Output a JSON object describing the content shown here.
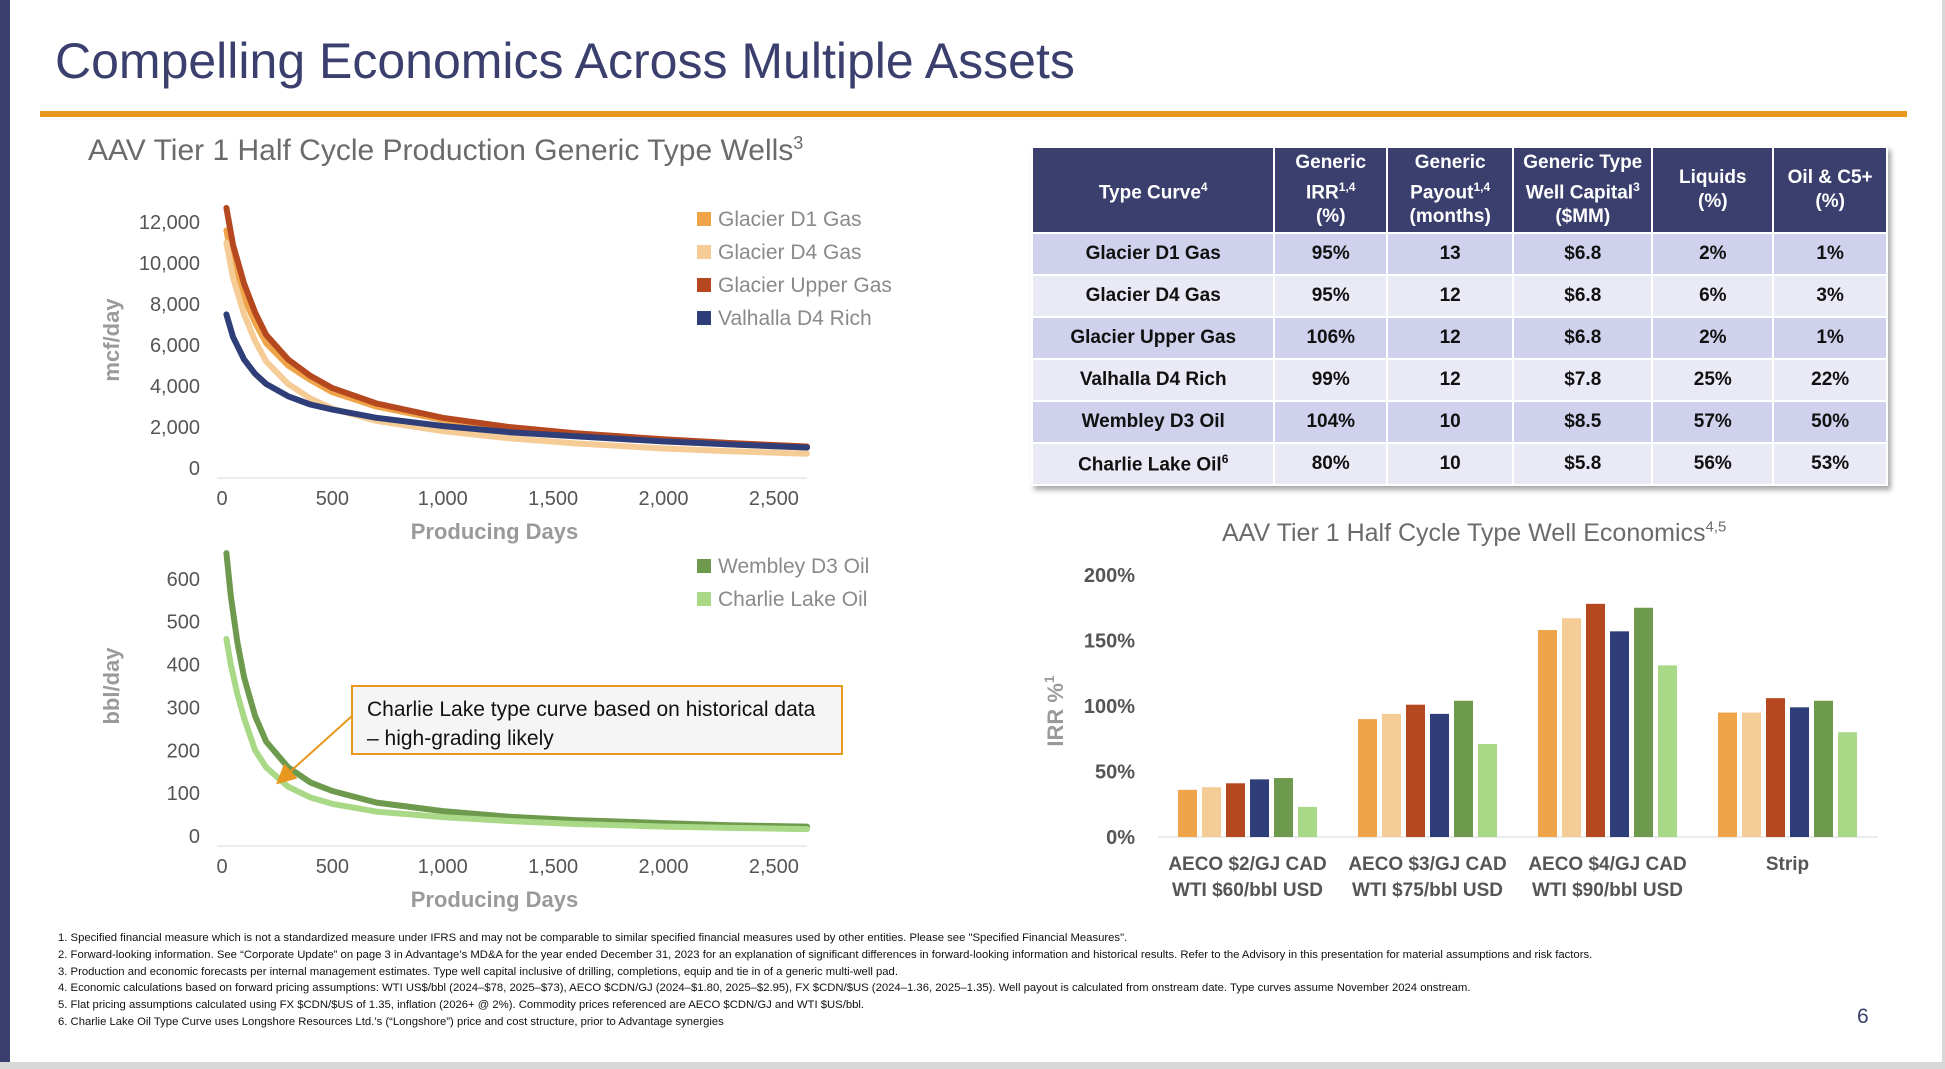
{
  "title": "Compelling Economics Across Multiple Assets",
  "page_number": "6",
  "colors": {
    "accent_orange": "#e8971f",
    "navy": "#3b3f6e",
    "glacier_d1": "#f0a44a",
    "glacier_d4": "#f5cb96",
    "glacier_upper": "#b5481f",
    "valhalla_d4": "#2f3e78",
    "wembley_d3": "#6e9a4e",
    "charlie_lake": "#a9d986"
  },
  "gas_chart": {
    "title": "AAV Tier 1 Half Cycle Production Generic Type Wells",
    "title_sup": "3"
  },
  "callout": "Charlie Lake type curve based on historical data – high-grading likely",
  "econ_chart": {
    "title": "AAV Tier 1 Half Cycle Type Well Economics",
    "title_sup": "4,5",
    "ylabel": "IRR %",
    "ylabel_sup": "1"
  },
  "table": {
    "headers": [
      {
        "text": "Type Curve",
        "sup": "4"
      },
      {
        "lines": [
          "Generic",
          "IRR",
          "(%)"
        ],
        "sup": "1,4"
      },
      {
        "lines": [
          "Generic",
          "Payout",
          "(months)"
        ],
        "sup": "1,4"
      },
      {
        "lines": [
          "Generic Type",
          "Well Capital",
          "($MM)"
        ],
        "sup": "3"
      },
      {
        "lines": [
          "Liquids",
          "(%)"
        ]
      },
      {
        "lines": [
          "Oil & C5+",
          "(%)"
        ]
      }
    ],
    "rows": [
      {
        "name": "Glacier D1 Gas",
        "irr": "95%",
        "payout": "13",
        "capital": "$6.8",
        "liquids": "2%",
        "oil": "1%"
      },
      {
        "name": "Glacier D4 Gas",
        "irr": "95%",
        "payout": "12",
        "capital": "$6.8",
        "liquids": "6%",
        "oil": "3%"
      },
      {
        "name": "Glacier Upper Gas",
        "irr": "106%",
        "payout": "12",
        "capital": "$6.8",
        "liquids": "2%",
        "oil": "1%"
      },
      {
        "name": "Valhalla D4 Rich",
        "irr": "99%",
        "payout": "12",
        "capital": "$7.8",
        "liquids": "25%",
        "oil": "22%"
      },
      {
        "name": "Wembley D3 Oil",
        "irr": "104%",
        "payout": "10",
        "capital": "$8.5",
        "liquids": "57%",
        "oil": "50%"
      },
      {
        "name": "Charlie Lake Oil",
        "name_sup": "6",
        "irr": "80%",
        "payout": "10",
        "capital": "$5.8",
        "liquids": "56%",
        "oil": "53%"
      }
    ]
  },
  "footnotes": [
    "1. Specified financial measure which is not a standardized measure under IFRS and may not be comparable to similar specified financial measures used by other entities. Please see \"Specified Financial Measures\".",
    "2. Forward-looking information. See “Corporate Update” on page 3 in Advantage’s MD&A for the year ended December 31, 2023 for an explanation of significant differences in forward-looking information and historical results. Refer to the Advisory in this presentation for material assumptions and risk factors.",
    "3. Production and economic forecasts per internal management estimates. Type well capital inclusive of drilling, completions, equip and tie in of a generic multi-well pad.",
    "4. Economic calculations based on forward pricing assumptions: WTI US$/bbl (2024–$78, 2025–$73), AECO $CDN/GJ (2024–$1.80, 2025–$2.95), FX $CDN/$US (2024–1.36, 2025–1.35). Well payout is calculated from onstream date. Type curves assume November 2024 onstream.",
    "5. Flat pricing assumptions calculated using FX $CDN/$US of 1.35, inflation (2026+ @ 2%). Commodity prices referenced are AECO $CDN/GJ and WTI $US/bbl.",
    "6. Charlie Lake Oil Type Curve uses Longshore Resources Ltd.’s (“Longshore”) price and cost structure, prior to Advantage synergies"
  ],
  "chart_data": [
    {
      "type": "line",
      "xlabel": "Producing Days",
      "ylabel": "mcf/day",
      "xlim": [
        0,
        2650
      ],
      "ylim": [
        0,
        12500
      ],
      "xticks": [
        0,
        500,
        1000,
        1500,
        2000,
        2500
      ],
      "yticks": [
        0,
        2000,
        4000,
        6000,
        8000,
        10000,
        12000
      ],
      "xtick_labels": [
        "0",
        "500",
        "1,000",
        "1,500",
        "2,000",
        "2,500"
      ],
      "ytick_labels": [
        "0",
        "2,000",
        "4,000",
        "6,000",
        "8,000",
        "10,000",
        "12,000"
      ],
      "legend_position": "top-right",
      "series": [
        {
          "name": "Glacier D1 Gas",
          "color": "#f0a44a",
          "x": [
            20,
            50,
            100,
            150,
            200,
            300,
            400,
            500,
            700,
            1000,
            1300,
            1600,
            2000,
            2300,
            2650
          ],
          "y": [
            11600,
            10000,
            8300,
            7100,
            6100,
            5000,
            4300,
            3700,
            3000,
            2350,
            1900,
            1600,
            1300,
            1150,
            1000
          ]
        },
        {
          "name": "Glacier D4 Gas",
          "color": "#f5cb96",
          "x": [
            20,
            50,
            100,
            150,
            200,
            300,
            400,
            500,
            700,
            1000,
            1300,
            1600,
            2000,
            2300,
            2650
          ],
          "y": [
            11000,
            9300,
            7500,
            6200,
            5200,
            4100,
            3400,
            2900,
            2300,
            1800,
            1450,
            1200,
            950,
            820,
            700
          ]
        },
        {
          "name": "Glacier Upper Gas",
          "color": "#b5481f",
          "x": [
            20,
            50,
            100,
            150,
            200,
            300,
            400,
            500,
            700,
            1000,
            1300,
            1600,
            2000,
            2300,
            2650
          ],
          "y": [
            12700,
            10900,
            9000,
            7600,
            6500,
            5300,
            4500,
            3900,
            3150,
            2450,
            2000,
            1700,
            1400,
            1220,
            1050
          ]
        },
        {
          "name": "Valhalla D4 Rich",
          "color": "#2f3e78",
          "x": [
            20,
            50,
            100,
            150,
            200,
            300,
            400,
            500,
            700,
            1000,
            1300,
            1600,
            2000,
            2300,
            2650
          ],
          "y": [
            7500,
            6400,
            5300,
            4600,
            4100,
            3500,
            3100,
            2850,
            2450,
            2050,
            1750,
            1550,
            1300,
            1150,
            1000
          ]
        }
      ]
    },
    {
      "type": "line",
      "xlabel": "Producing Days",
      "ylabel": "bbl/day",
      "xlim": [
        0,
        2650
      ],
      "ylim": [
        0,
        700
      ],
      "xticks": [
        0,
        500,
        1000,
        1500,
        2000,
        2500
      ],
      "yticks": [
        0,
        100,
        200,
        300,
        400,
        500,
        600
      ],
      "xtick_labels": [
        "0",
        "500",
        "1,000",
        "1,500",
        "2,000",
        "2,500"
      ],
      "ytick_labels": [
        "0",
        "100",
        "200",
        "300",
        "400",
        "500",
        "600"
      ],
      "legend_position": "top-right",
      "series": [
        {
          "name": "Wembley D3 Oil",
          "color": "#6e9a4e",
          "x": [
            20,
            40,
            70,
            100,
            150,
            200,
            300,
            400,
            500,
            700,
            1000,
            1300,
            1600,
            2000,
            2300,
            2650
          ],
          "y": [
            660,
            560,
            450,
            370,
            280,
            220,
            160,
            125,
            105,
            78,
            58,
            45,
            37,
            30,
            25,
            22
          ]
        },
        {
          "name": "Charlie Lake Oil",
          "color": "#a9d986",
          "x": [
            20,
            40,
            70,
            100,
            150,
            200,
            300,
            400,
            500,
            700,
            1000,
            1300,
            1600,
            2000,
            2300,
            2650
          ],
          "y": [
            460,
            400,
            330,
            275,
            200,
            160,
            115,
            90,
            75,
            57,
            44,
            35,
            28,
            22,
            19,
            16
          ]
        }
      ]
    },
    {
      "type": "bar",
      "title": "AAV Tier 1 Half Cycle Type Well Economics",
      "ylabel": "IRR %",
      "ylim": [
        0,
        200
      ],
      "yticks": [
        0,
        50,
        100,
        150,
        200
      ],
      "ytick_labels": [
        "0%",
        "50%",
        "100%",
        "150%",
        "200%"
      ],
      "categories": [
        [
          "AECO $2/GJ CAD",
          "WTI $60/bbl USD"
        ],
        [
          "AECO $3/GJ CAD",
          "WTI $75/bbl USD"
        ],
        [
          "AECO $4/GJ CAD",
          "WTI $90/bbl USD"
        ],
        [
          "Strip"
        ]
      ],
      "series": [
        {
          "name": "Glacier D1 Gas",
          "color": "#f0a44a",
          "values": [
            36,
            90,
            158,
            95
          ]
        },
        {
          "name": "Glacier D4 Gas",
          "color": "#f5cb96",
          "values": [
            38,
            94,
            167,
            95
          ]
        },
        {
          "name": "Glacier Upper Gas",
          "color": "#b5481f",
          "values": [
            41,
            101,
            178,
            106
          ]
        },
        {
          "name": "Valhalla D4 Rich",
          "color": "#2f3e78",
          "values": [
            44,
            94,
            157,
            99
          ]
        },
        {
          "name": "Wembley D3 Oil",
          "color": "#6e9a4e",
          "values": [
            45,
            104,
            175,
            104
          ]
        },
        {
          "name": "Charlie Lake Oil",
          "color": "#a9d986",
          "values": [
            23,
            71,
            131,
            80
          ]
        }
      ]
    }
  ]
}
